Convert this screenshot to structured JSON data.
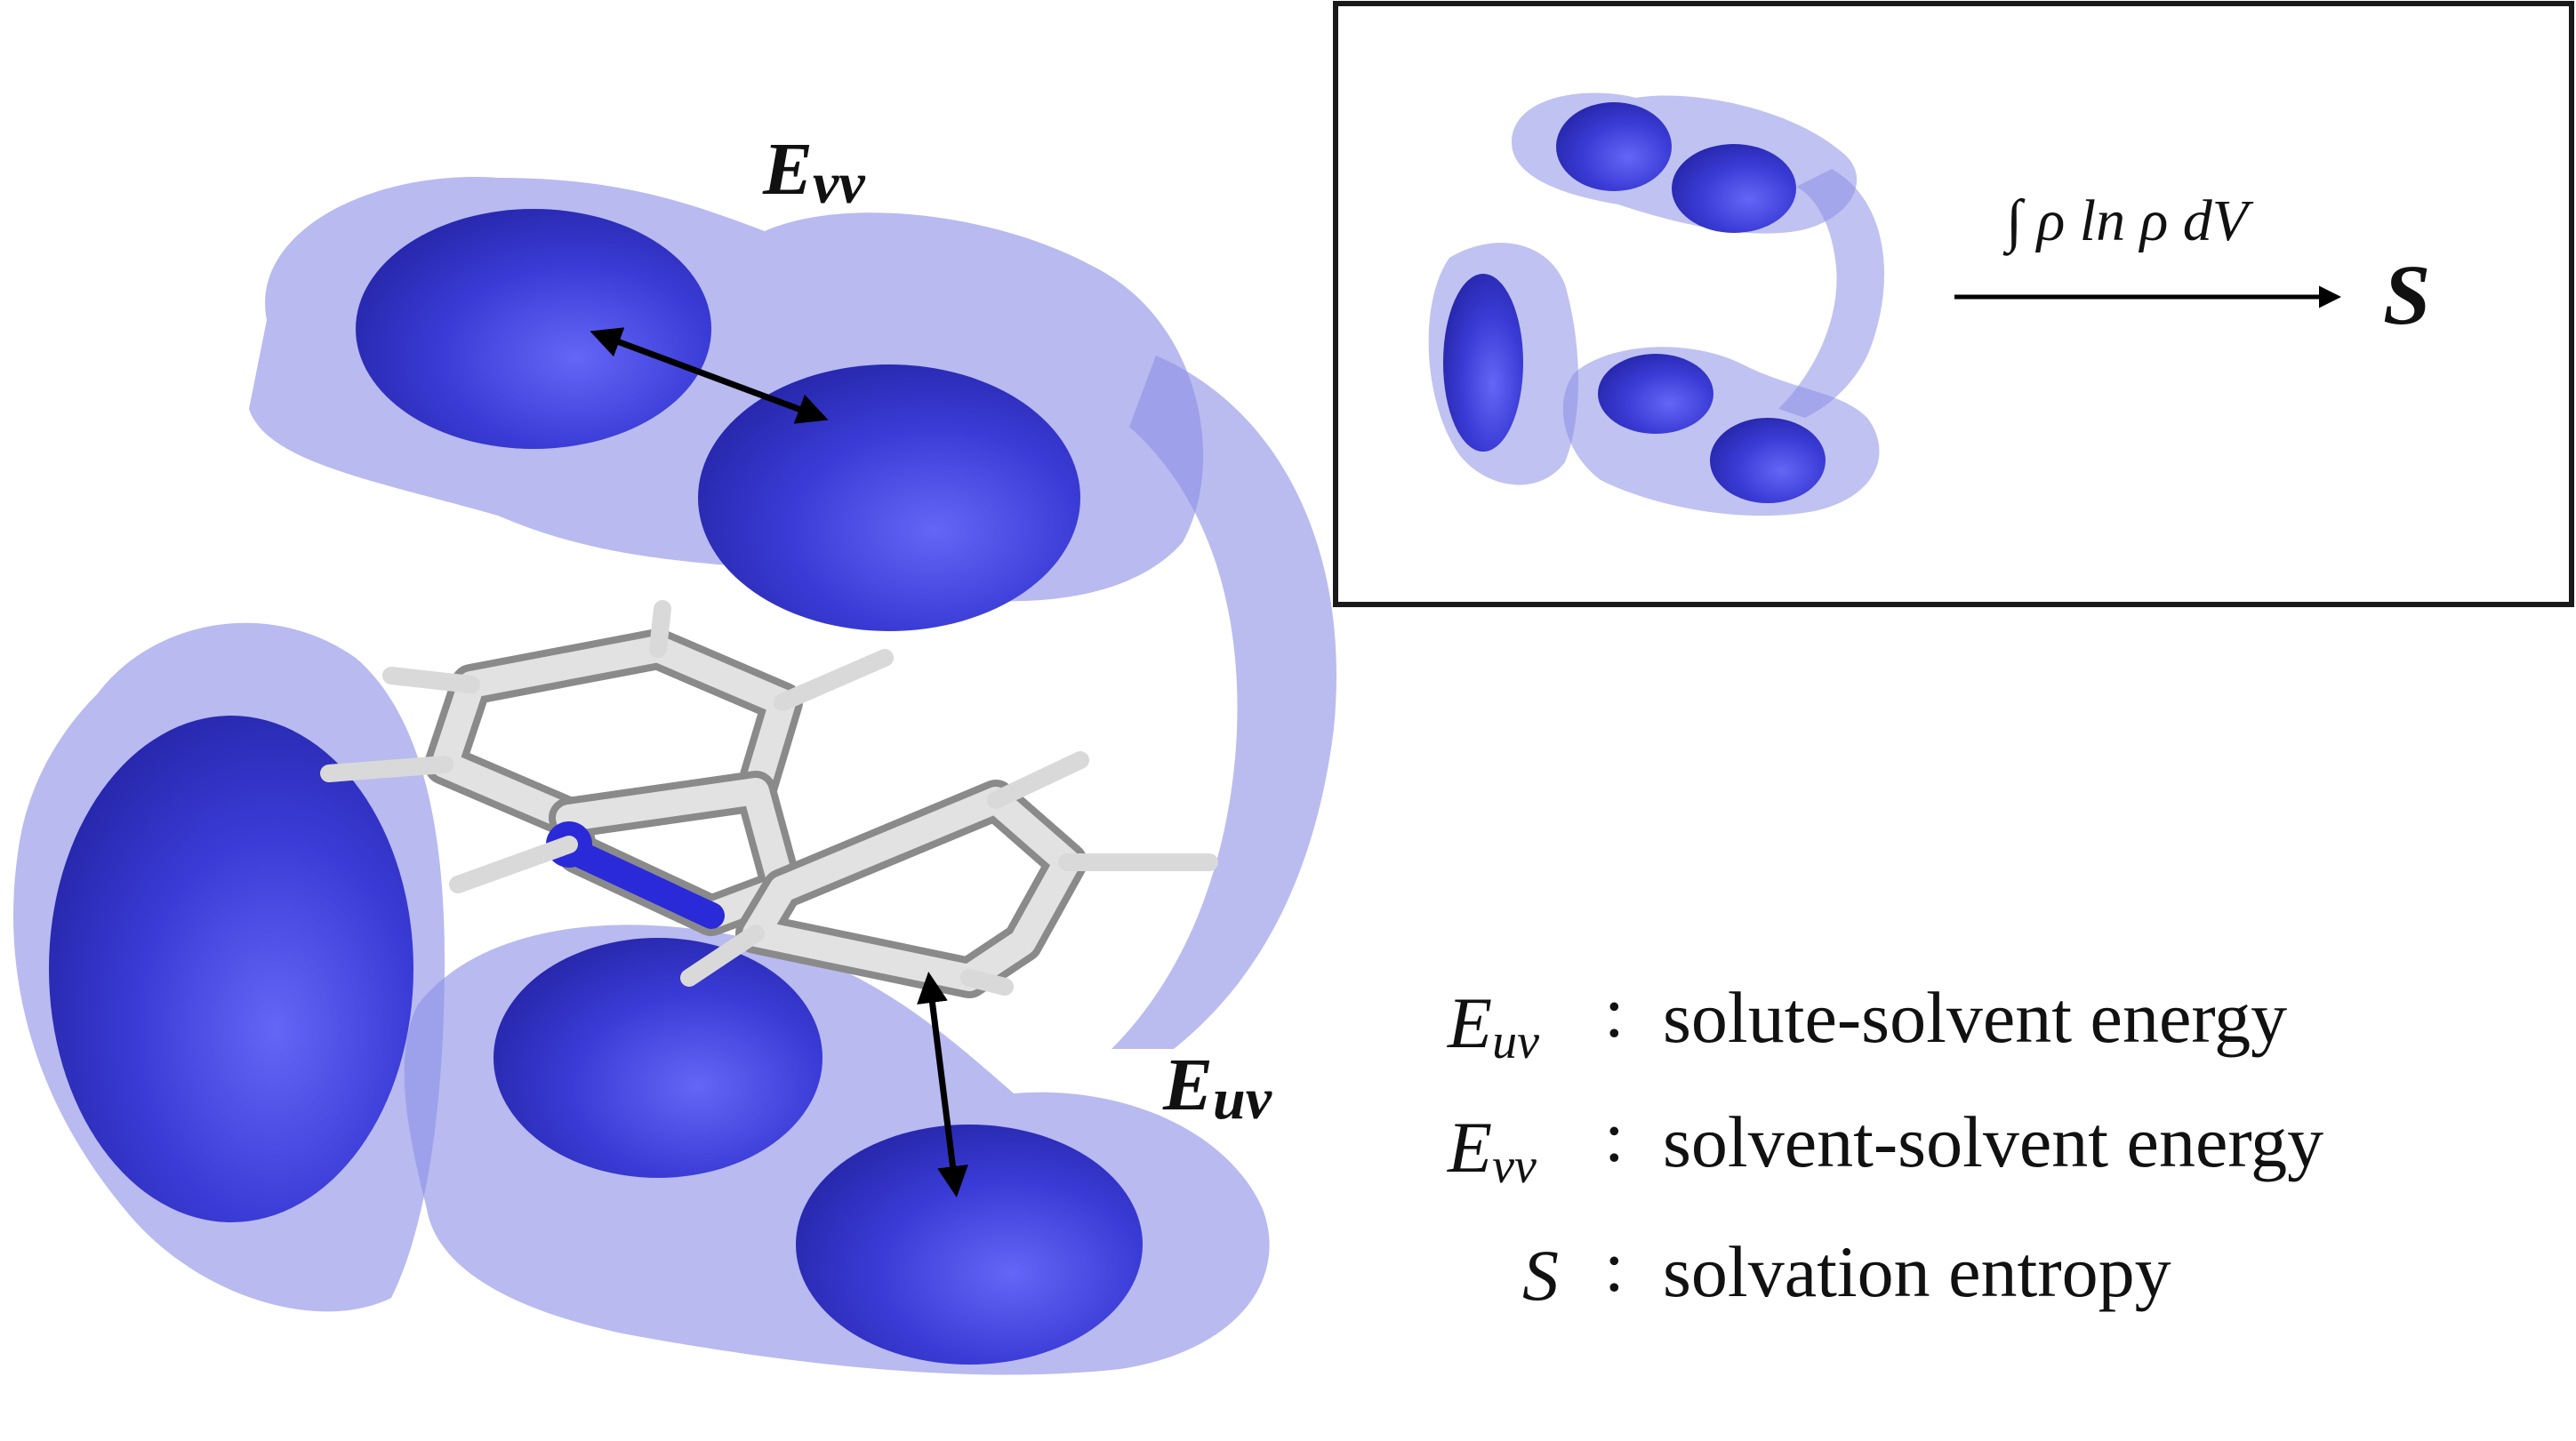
{
  "labels": {
    "evv_main": "E",
    "evv_main_sub": "vv",
    "euv_main": "E",
    "euv_main_sub": "uv",
    "inset_integral": "∫ ρ ln ρ dV",
    "inset_result": "S"
  },
  "legend": [
    {
      "symbol": "E",
      "sub": "uv",
      "sep": ":",
      "text": "solute-solvent energy"
    },
    {
      "symbol": "E",
      "sub": "vv",
      "sep": ":",
      "text": "solvent-solvent energy"
    },
    {
      "symbol": "S",
      "sub": "",
      "sep": ":",
      "text": "solvation entropy"
    }
  ],
  "colors": {
    "shell": "#8c8fe6",
    "core": "#2f30c8",
    "core_highlight": "#5a5cf0",
    "stick": "#cfcfcf",
    "nitrogen": "#2a2ad8",
    "frame": "#1a1a1a"
  }
}
